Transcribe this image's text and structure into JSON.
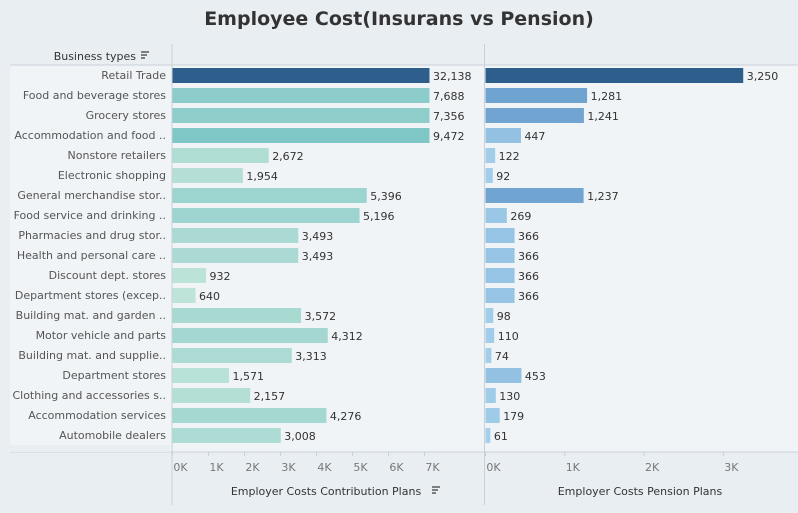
{
  "title": "Employee Cost(Insurans vs Pension)",
  "dimension_header": "Business types",
  "sort_icon": "sort-descending-icon",
  "colors": {
    "background": "#e9eef3",
    "contribution_low": "#c3e6da",
    "contribution_high": "#7fc6c6",
    "contribution_top": "#2e5f8c",
    "pension_low": "#a6d1ec",
    "pension_high": "#6fa3d0",
    "pension_top": "#2e5f8c"
  },
  "chart_data": [
    {
      "type": "bar",
      "orientation": "horizontal",
      "xlabel": "Employer Costs Contribution Plans",
      "xlim": [
        0,
        7000
      ],
      "ticks": [
        0,
        1000,
        2000,
        3000,
        4000,
        5000,
        6000,
        7000
      ],
      "tick_labels": [
        "0K",
        "1K",
        "2K",
        "3K",
        "4K",
        "5K",
        "6K",
        "7K"
      ],
      "categories": [
        "Retail Trade",
        "Food and beverage stores",
        "Grocery stores",
        "Accommodation and food ..",
        "Nonstore retailers",
        "Electronic shopping",
        "General merchandise stor..",
        "Food service and drinking ..",
        "Pharmacies and drug stor..",
        "Health and personal care ..",
        "Discount dept. stores",
        "Department stores (excep..",
        "Building mat. and garden ..",
        "Motor vehicle and parts",
        "Building mat. and supplie..",
        "Department stores",
        "Clothing and accessories s..",
        "Accommodation services",
        "Automobile dealers"
      ],
      "values": [
        32138,
        7688,
        7356,
        9472,
        2672,
        1954,
        5396,
        5196,
        3493,
        3493,
        932,
        640,
        3572,
        4312,
        3313,
        1571,
        2157,
        4276,
        3008
      ],
      "value_labels": [
        "32,138",
        "7,688",
        "7,356",
        "9,472",
        "2,672",
        "1,954",
        "5,396",
        "5,196",
        "3,493",
        "3,493",
        "932",
        "640",
        "3,572",
        "4,312",
        "3,313",
        "1,571",
        "2,157",
        "4,276",
        "3,008"
      ],
      "grid": false
    },
    {
      "type": "bar",
      "orientation": "horizontal",
      "xlabel": "Employer Costs Pension Plans",
      "xlim": [
        0,
        3200
      ],
      "ticks": [
        0,
        1000,
        2000,
        3000
      ],
      "tick_labels": [
        "0K",
        "1K",
        "2K",
        "3K"
      ],
      "categories": [
        "Retail Trade",
        "Food and beverage stores",
        "Grocery stores",
        "Accommodation and food ..",
        "Nonstore retailers",
        "Electronic shopping",
        "General merchandise stor..",
        "Food service and drinking ..",
        "Pharmacies and drug stor..",
        "Health and personal care ..",
        "Discount dept. stores",
        "Department stores (excep..",
        "Building mat. and garden ..",
        "Motor vehicle and parts",
        "Building mat. and supplie..",
        "Department stores",
        "Clothing and accessories s..",
        "Accommodation services",
        "Automobile dealers"
      ],
      "values": [
        3250,
        1281,
        1241,
        447,
        122,
        92,
        1237,
        269,
        366,
        366,
        366,
        366,
        98,
        110,
        74,
        453,
        130,
        179,
        61
      ],
      "value_labels": [
        "3,250",
        "1,281",
        "1,241",
        "447",
        "122",
        "92",
        "1,237",
        "269",
        "366",
        "366",
        "366",
        "366",
        "98",
        "110",
        "74",
        "453",
        "130",
        "179",
        "61"
      ],
      "grid": false
    }
  ]
}
